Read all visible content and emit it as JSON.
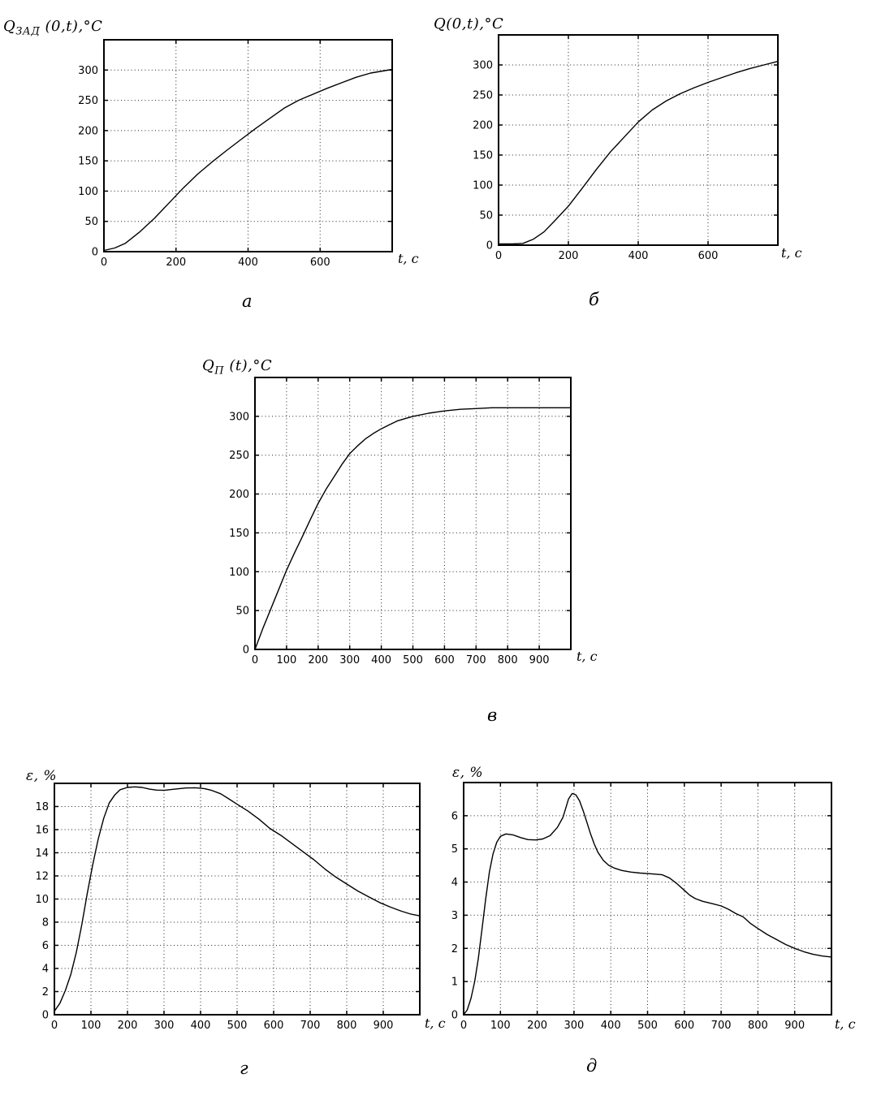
{
  "page": {
    "background": "#ffffff",
    "ink_color": "#000000",
    "grid_color": "#222222"
  },
  "chart_data": [
    {
      "id": "a",
      "type": "line",
      "title": {
        "main": "Q",
        "sub": "ЗАД",
        "rest": " (0,t),°C"
      },
      "caption": "а",
      "xlabel": "t, с",
      "xlim": [
        0,
        800
      ],
      "ylim": [
        0,
        350
      ],
      "x_ticks": [
        0,
        200,
        400,
        600
      ],
      "y_ticks": [
        0,
        50,
        100,
        150,
        200,
        250,
        300
      ],
      "grid": "dotted",
      "line_color": "#000000",
      "points": [
        [
          0,
          2
        ],
        [
          30,
          6
        ],
        [
          60,
          14
        ],
        [
          100,
          33
        ],
        [
          140,
          55
        ],
        [
          180,
          80
        ],
        [
          220,
          105
        ],
        [
          260,
          128
        ],
        [
          300,
          148
        ],
        [
          340,
          167
        ],
        [
          380,
          185
        ],
        [
          420,
          203
        ],
        [
          460,
          220
        ],
        [
          500,
          237
        ],
        [
          540,
          250
        ],
        [
          580,
          260
        ],
        [
          620,
          270
        ],
        [
          660,
          279
        ],
        [
          700,
          288
        ],
        [
          740,
          295
        ],
        [
          800,
          301
        ]
      ]
    },
    {
      "id": "b",
      "type": "line",
      "title": {
        "main": "Q",
        "sub": "",
        "rest": "(0,t),°C"
      },
      "caption": "б",
      "xlabel": "t, с",
      "xlim": [
        0,
        800
      ],
      "ylim": [
        0,
        350
      ],
      "x_ticks": [
        0,
        200,
        400,
        600
      ],
      "y_ticks": [
        0,
        50,
        100,
        150,
        200,
        250,
        300
      ],
      "grid": "dotted",
      "line_color": "#000000",
      "points": [
        [
          0,
          2
        ],
        [
          40,
          2
        ],
        [
          70,
          3
        ],
        [
          100,
          10
        ],
        [
          130,
          22
        ],
        [
          160,
          40
        ],
        [
          200,
          65
        ],
        [
          240,
          95
        ],
        [
          280,
          126
        ],
        [
          320,
          155
        ],
        [
          360,
          180
        ],
        [
          400,
          205
        ],
        [
          440,
          225
        ],
        [
          480,
          240
        ],
        [
          520,
          252
        ],
        [
          560,
          262
        ],
        [
          600,
          271
        ],
        [
          640,
          279
        ],
        [
          680,
          287
        ],
        [
          720,
          294
        ],
        [
          760,
          300
        ],
        [
          800,
          306
        ]
      ]
    },
    {
      "id": "v",
      "type": "line",
      "title": {
        "main": "Q",
        "sub": "П",
        "rest": " (t),°C"
      },
      "caption": "в",
      "xlabel": "t, с",
      "xlim": [
        0,
        1000
      ],
      "ylim": [
        0,
        350
      ],
      "x_ticks": [
        0,
        100,
        200,
        300,
        400,
        500,
        600,
        700,
        800,
        900
      ],
      "y_ticks": [
        0,
        50,
        100,
        150,
        200,
        250,
        300
      ],
      "grid": "dotted",
      "line_color": "#000000",
      "points": [
        [
          0,
          0
        ],
        [
          25,
          27
        ],
        [
          50,
          52
        ],
        [
          75,
          77
        ],
        [
          100,
          102
        ],
        [
          125,
          124
        ],
        [
          150,
          145
        ],
        [
          175,
          167
        ],
        [
          200,
          188
        ],
        [
          225,
          206
        ],
        [
          250,
          222
        ],
        [
          275,
          238
        ],
        [
          300,
          252
        ],
        [
          325,
          262
        ],
        [
          350,
          271
        ],
        [
          375,
          278
        ],
        [
          400,
          284
        ],
        [
          425,
          289
        ],
        [
          450,
          294
        ],
        [
          475,
          297
        ],
        [
          500,
          300
        ],
        [
          550,
          304
        ],
        [
          600,
          307
        ],
        [
          650,
          309
        ],
        [
          700,
          310
        ],
        [
          750,
          311
        ],
        [
          800,
          311
        ],
        [
          900,
          311
        ],
        [
          1000,
          311
        ]
      ]
    },
    {
      "id": "g",
      "type": "line",
      "title": {
        "main": "ε",
        "sub": "",
        "rest": ", %"
      },
      "caption": "г",
      "xlabel": "t, с",
      "xlim": [
        0,
        1000
      ],
      "ylim": [
        0,
        20
      ],
      "x_ticks": [
        0,
        100,
        200,
        300,
        400,
        500,
        600,
        700,
        800,
        900
      ],
      "y_ticks": [
        0,
        2,
        4,
        6,
        8,
        10,
        12,
        14,
        16,
        18
      ],
      "grid": "dotted",
      "line_color": "#000000",
      "points": [
        [
          0,
          0.3
        ],
        [
          15,
          1.0
        ],
        [
          30,
          2.1
        ],
        [
          45,
          3.5
        ],
        [
          60,
          5.4
        ],
        [
          75,
          7.8
        ],
        [
          90,
          10.5
        ],
        [
          105,
          13.0
        ],
        [
          120,
          15.2
        ],
        [
          135,
          17.0
        ],
        [
          150,
          18.3
        ],
        [
          165,
          19.0
        ],
        [
          180,
          19.45
        ],
        [
          200,
          19.65
        ],
        [
          220,
          19.7
        ],
        [
          240,
          19.65
        ],
        [
          260,
          19.5
        ],
        [
          280,
          19.42
        ],
        [
          300,
          19.4
        ],
        [
          330,
          19.5
        ],
        [
          360,
          19.6
        ],
        [
          385,
          19.62
        ],
        [
          410,
          19.55
        ],
        [
          430,
          19.4
        ],
        [
          455,
          19.1
        ],
        [
          480,
          18.6
        ],
        [
          500,
          18.2
        ],
        [
          530,
          17.6
        ],
        [
          560,
          16.9
        ],
        [
          590,
          16.1
        ],
        [
          620,
          15.5
        ],
        [
          650,
          14.8
        ],
        [
          680,
          14.1
        ],
        [
          710,
          13.4
        ],
        [
          740,
          12.6
        ],
        [
          770,
          11.9
        ],
        [
          800,
          11.3
        ],
        [
          830,
          10.7
        ],
        [
          860,
          10.2
        ],
        [
          890,
          9.7
        ],
        [
          920,
          9.3
        ],
        [
          950,
          8.95
        ],
        [
          975,
          8.7
        ],
        [
          1000,
          8.55
        ]
      ]
    },
    {
      "id": "d",
      "type": "line",
      "title": {
        "main": "ε",
        "sub": "",
        "rest": ", %"
      },
      "caption": "д",
      "xlabel": "t, с",
      "xlim": [
        0,
        1000
      ],
      "ylim": [
        0,
        7
      ],
      "x_ticks": [
        0,
        100,
        200,
        300,
        400,
        500,
        600,
        700,
        800,
        900
      ],
      "y_ticks": [
        0,
        1,
        2,
        3,
        4,
        5,
        6
      ],
      "grid": "dotted",
      "line_color": "#000000",
      "points": [
        [
          0,
          0
        ],
        [
          10,
          0.15
        ],
        [
          20,
          0.5
        ],
        [
          30,
          1.0
        ],
        [
          40,
          1.7
        ],
        [
          50,
          2.6
        ],
        [
          60,
          3.5
        ],
        [
          70,
          4.3
        ],
        [
          80,
          4.85
        ],
        [
          90,
          5.2
        ],
        [
          100,
          5.38
        ],
        [
          115,
          5.45
        ],
        [
          135,
          5.42
        ],
        [
          155,
          5.34
        ],
        [
          175,
          5.28
        ],
        [
          195,
          5.27
        ],
        [
          215,
          5.3
        ],
        [
          235,
          5.4
        ],
        [
          255,
          5.65
        ],
        [
          270,
          5.95
        ],
        [
          285,
          6.5
        ],
        [
          295,
          6.67
        ],
        [
          305,
          6.63
        ],
        [
          315,
          6.45
        ],
        [
          325,
          6.15
        ],
        [
          335,
          5.8
        ],
        [
          345,
          5.45
        ],
        [
          355,
          5.15
        ],
        [
          365,
          4.9
        ],
        [
          380,
          4.65
        ],
        [
          395,
          4.5
        ],
        [
          410,
          4.42
        ],
        [
          430,
          4.35
        ],
        [
          455,
          4.3
        ],
        [
          480,
          4.27
        ],
        [
          510,
          4.25
        ],
        [
          540,
          4.22
        ],
        [
          560,
          4.12
        ],
        [
          580,
          3.95
        ],
        [
          600,
          3.75
        ],
        [
          615,
          3.6
        ],
        [
          630,
          3.5
        ],
        [
          650,
          3.42
        ],
        [
          675,
          3.35
        ],
        [
          700,
          3.28
        ],
        [
          720,
          3.18
        ],
        [
          740,
          3.05
        ],
        [
          760,
          2.95
        ],
        [
          780,
          2.75
        ],
        [
          800,
          2.6
        ],
        [
          825,
          2.42
        ],
        [
          850,
          2.27
        ],
        [
          875,
          2.12
        ],
        [
          900,
          2.0
        ],
        [
          925,
          1.9
        ],
        [
          950,
          1.82
        ],
        [
          975,
          1.77
        ],
        [
          1000,
          1.74
        ]
      ]
    }
  ]
}
